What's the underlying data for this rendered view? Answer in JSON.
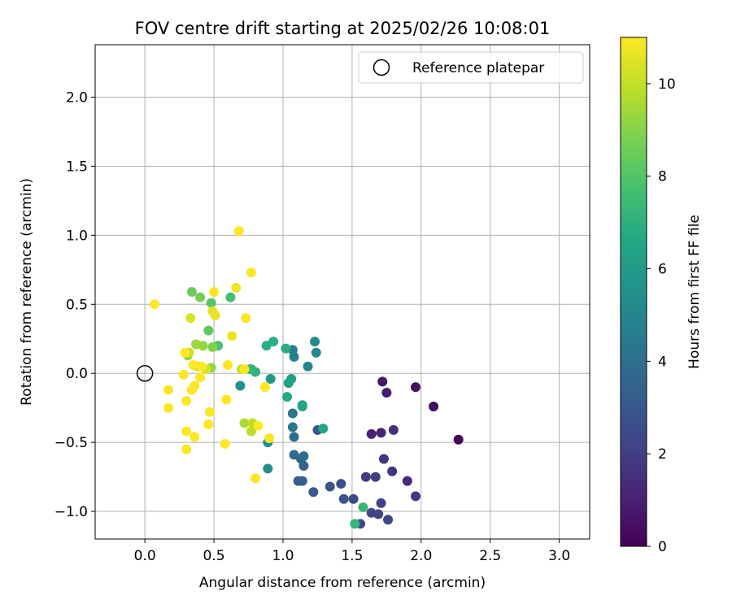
{
  "chart_data": {
    "type": "scatter",
    "title": "FOV centre drift starting at 2025/02/26 10:08:01",
    "xlabel": "Angular distance from reference (arcmin)",
    "ylabel": "Rotation from reference (arcmin)",
    "xlim": [
      -0.36,
      3.22
    ],
    "ylim": [
      -1.2,
      2.38
    ],
    "xticks": [
      "0.0",
      "0.5",
      "1.0",
      "1.5",
      "2.0",
      "2.5",
      "3.0"
    ],
    "xtick_values": [
      0.0,
      0.5,
      1.0,
      1.5,
      2.0,
      2.5,
      3.0
    ],
    "yticks": [
      "−1.0",
      "−0.5",
      "0.0",
      "0.5",
      "1.0",
      "1.5",
      "2.0"
    ],
    "ytick_values": [
      -1.0,
      -0.5,
      0.0,
      0.5,
      1.0,
      1.5,
      2.0
    ],
    "grid": true,
    "legend_position": "top-right",
    "legend_entries": [
      {
        "label": "Reference platepar",
        "marker": "open-circle"
      }
    ],
    "reference_point": {
      "x": 0.0,
      "y": 0.0
    },
    "colorbar": {
      "label": "Hours from first FF file",
      "colormap": "viridis",
      "range": [
        0,
        11
      ],
      "ticks": [
        "0",
        "2",
        "4",
        "6",
        "8",
        "10"
      ],
      "tick_values": [
        0,
        2,
        4,
        6,
        8,
        10
      ]
    },
    "series": [
      {
        "points": [
          {
            "x": 2.27,
            "y": -0.48,
            "c": 0.1
          },
          {
            "x": 2.09,
            "y": -0.24,
            "c": 0.3
          },
          {
            "x": 1.96,
            "y": -0.1,
            "c": 0.5
          },
          {
            "x": 1.72,
            "y": -0.06,
            "c": 0.7
          },
          {
            "x": 1.75,
            "y": -0.14,
            "c": 0.9
          },
          {
            "x": 1.64,
            "y": -0.44,
            "c": 1.0
          },
          {
            "x": 1.71,
            "y": -0.43,
            "c": 1.1
          },
          {
            "x": 1.9,
            "y": -0.78,
            "c": 1.3
          },
          {
            "x": 1.8,
            "y": -0.41,
            "c": 1.5
          },
          {
            "x": 1.73,
            "y": -0.62,
            "c": 1.6
          },
          {
            "x": 1.79,
            "y": -0.71,
            "c": 1.7
          },
          {
            "x": 1.96,
            "y": -0.89,
            "c": 1.8
          },
          {
            "x": 1.6,
            "y": -0.75,
            "c": 1.9
          },
          {
            "x": 1.67,
            "y": -0.75,
            "c": 2.0
          },
          {
            "x": 1.71,
            "y": -0.94,
            "c": 2.1
          },
          {
            "x": 1.69,
            "y": -1.02,
            "c": 2.2
          },
          {
            "x": 1.76,
            "y": -1.06,
            "c": 2.2
          },
          {
            "x": 1.64,
            "y": -1.01,
            "c": 2.3
          },
          {
            "x": 1.56,
            "y": -1.09,
            "c": 2.4
          },
          {
            "x": 1.51,
            "y": -0.91,
            "c": 2.5
          },
          {
            "x": 1.42,
            "y": -0.8,
            "c": 2.6
          },
          {
            "x": 1.34,
            "y": -0.82,
            "c": 2.8
          },
          {
            "x": 1.44,
            "y": -0.91,
            "c": 2.9
          },
          {
            "x": 1.25,
            "y": -0.41,
            "c": 3.0
          },
          {
            "x": 1.22,
            "y": -0.86,
            "c": 3.1
          },
          {
            "x": 1.11,
            "y": -0.78,
            "c": 3.2
          },
          {
            "x": 1.14,
            "y": -0.78,
            "c": 3.3
          },
          {
            "x": 1.15,
            "y": -0.67,
            "c": 3.4
          },
          {
            "x": 1.13,
            "y": -0.62,
            "c": 3.5
          },
          {
            "x": 1.08,
            "y": -0.59,
            "c": 3.7
          },
          {
            "x": 1.15,
            "y": -0.6,
            "c": 3.9
          },
          {
            "x": 1.08,
            "y": -0.46,
            "c": 4.0
          },
          {
            "x": 1.07,
            "y": -0.29,
            "c": 4.2
          },
          {
            "x": 1.07,
            "y": -0.39,
            "c": 4.4
          },
          {
            "x": 1.07,
            "y": 0.17,
            "c": 4.6
          },
          {
            "x": 1.08,
            "y": 0.12,
            "c": 4.8
          },
          {
            "x": 1.18,
            "y": 0.05,
            "c": 5.0
          },
          {
            "x": 1.24,
            "y": 0.15,
            "c": 5.1
          },
          {
            "x": 1.23,
            "y": 0.23,
            "c": 5.2
          },
          {
            "x": 0.89,
            "y": -0.5,
            "c": 5.3
          },
          {
            "x": 0.89,
            "y": -0.69,
            "c": 5.4
          },
          {
            "x": 0.69,
            "y": -0.09,
            "c": 5.5
          },
          {
            "x": 0.77,
            "y": 0.03,
            "c": 5.7
          },
          {
            "x": 0.91,
            "y": -0.04,
            "c": 5.9
          },
          {
            "x": 1.06,
            "y": -0.04,
            "c": 6.1
          },
          {
            "x": 1.04,
            "y": -0.07,
            "c": 6.3
          },
          {
            "x": 1.29,
            "y": -0.4,
            "c": 6.4
          },
          {
            "x": 1.14,
            "y": -0.24,
            "c": 6.5
          },
          {
            "x": 1.14,
            "y": -0.23,
            "c": 6.6
          },
          {
            "x": 1.03,
            "y": -0.17,
            "c": 6.7
          },
          {
            "x": 1.02,
            "y": 0.18,
            "c": 6.8
          },
          {
            "x": 0.88,
            "y": 0.2,
            "c": 6.9
          },
          {
            "x": 0.93,
            "y": 0.23,
            "c": 7.0
          },
          {
            "x": 0.8,
            "y": 0.01,
            "c": 7.1
          },
          {
            "x": 0.76,
            "y": 0.03,
            "c": 7.2
          },
          {
            "x": 1.52,
            "y": -1.09,
            "c": 7.2
          },
          {
            "x": 1.58,
            "y": -0.97,
            "c": 7.3
          },
          {
            "x": 0.62,
            "y": 0.55,
            "c": 7.7
          },
          {
            "x": 0.53,
            "y": 0.2,
            "c": 7.8
          },
          {
            "x": 0.48,
            "y": 0.51,
            "c": 8.0
          },
          {
            "x": 0.46,
            "y": 0.31,
            "c": 8.2
          },
          {
            "x": 0.34,
            "y": 0.59,
            "c": 8.5
          },
          {
            "x": 0.4,
            "y": 0.55,
            "c": 8.7
          },
          {
            "x": 0.49,
            "y": 0.19,
            "c": 8.9
          },
          {
            "x": 0.31,
            "y": 0.13,
            "c": 9.1
          },
          {
            "x": 0.42,
            "y": 0.2,
            "c": 9.2
          },
          {
            "x": 0.48,
            "y": 0.04,
            "c": 9.3
          },
          {
            "x": 0.37,
            "y": 0.21,
            "c": 9.4
          },
          {
            "x": 0.72,
            "y": -0.36,
            "c": 9.6
          },
          {
            "x": 0.77,
            "y": -0.42,
            "c": 9.8
          },
          {
            "x": 0.78,
            "y": -0.36,
            "c": 9.9
          },
          {
            "x": 0.7,
            "y": 0.03,
            "c": 10.0
          },
          {
            "x": 0.32,
            "y": 0.15,
            "c": 10.1
          },
          {
            "x": 0.38,
            "y": 0.05,
            "c": 10.2
          },
          {
            "x": 0.44,
            "y": 0.03,
            "c": 10.3
          },
          {
            "x": 0.33,
            "y": 0.4,
            "c": 10.4
          },
          {
            "x": 0.49,
            "y": 0.45,
            "c": 10.5
          },
          {
            "x": 0.51,
            "y": 0.42,
            "c": 10.6
          },
          {
            "x": 0.63,
            "y": 0.27,
            "c": 10.7
          },
          {
            "x": 0.66,
            "y": 0.62,
            "c": 10.8
          },
          {
            "x": 0.68,
            "y": 1.03,
            "c": 11.0
          },
          {
            "x": 0.77,
            "y": 0.73,
            "c": 11.0
          },
          {
            "x": 0.73,
            "y": 0.4,
            "c": 11.0
          },
          {
            "x": 0.5,
            "y": 0.59,
            "c": 11.0
          },
          {
            "x": 0.07,
            "y": 0.5,
            "c": 11.0
          },
          {
            "x": 0.28,
            "y": -0.01,
            "c": 11.0
          },
          {
            "x": 0.17,
            "y": -0.12,
            "c": 11.0
          },
          {
            "x": 0.17,
            "y": -0.25,
            "c": 11.0
          },
          {
            "x": 0.3,
            "y": -0.2,
            "c": 11.0
          },
          {
            "x": 0.34,
            "y": -0.12,
            "c": 11.0
          },
          {
            "x": 0.36,
            "y": -0.09,
            "c": 11.0
          },
          {
            "x": 0.4,
            "y": -0.03,
            "c": 11.0
          },
          {
            "x": 0.41,
            "y": 0.05,
            "c": 11.0
          },
          {
            "x": 0.35,
            "y": 0.06,
            "c": 11.0
          },
          {
            "x": 0.29,
            "y": 0.15,
            "c": 11.0
          },
          {
            "x": 0.47,
            "y": -0.28,
            "c": 11.0
          },
          {
            "x": 0.46,
            "y": -0.37,
            "c": 11.0
          },
          {
            "x": 0.36,
            "y": -0.46,
            "c": 11.0
          },
          {
            "x": 0.3,
            "y": -0.42,
            "c": 11.0
          },
          {
            "x": 0.3,
            "y": -0.55,
            "c": 11.0
          },
          {
            "x": 0.58,
            "y": -0.51,
            "c": 11.0
          },
          {
            "x": 0.59,
            "y": -0.19,
            "c": 11.0
          },
          {
            "x": 0.6,
            "y": 0.06,
            "c": 11.0
          },
          {
            "x": 0.72,
            "y": 0.03,
            "c": 11.0
          },
          {
            "x": 0.82,
            "y": -0.38,
            "c": 11.0
          },
          {
            "x": 0.87,
            "y": -0.1,
            "c": 11.0
          },
          {
            "x": 0.9,
            "y": -0.47,
            "c": 11.0
          },
          {
            "x": 0.8,
            "y": -0.76,
            "c": 11.0
          }
        ]
      }
    ]
  }
}
